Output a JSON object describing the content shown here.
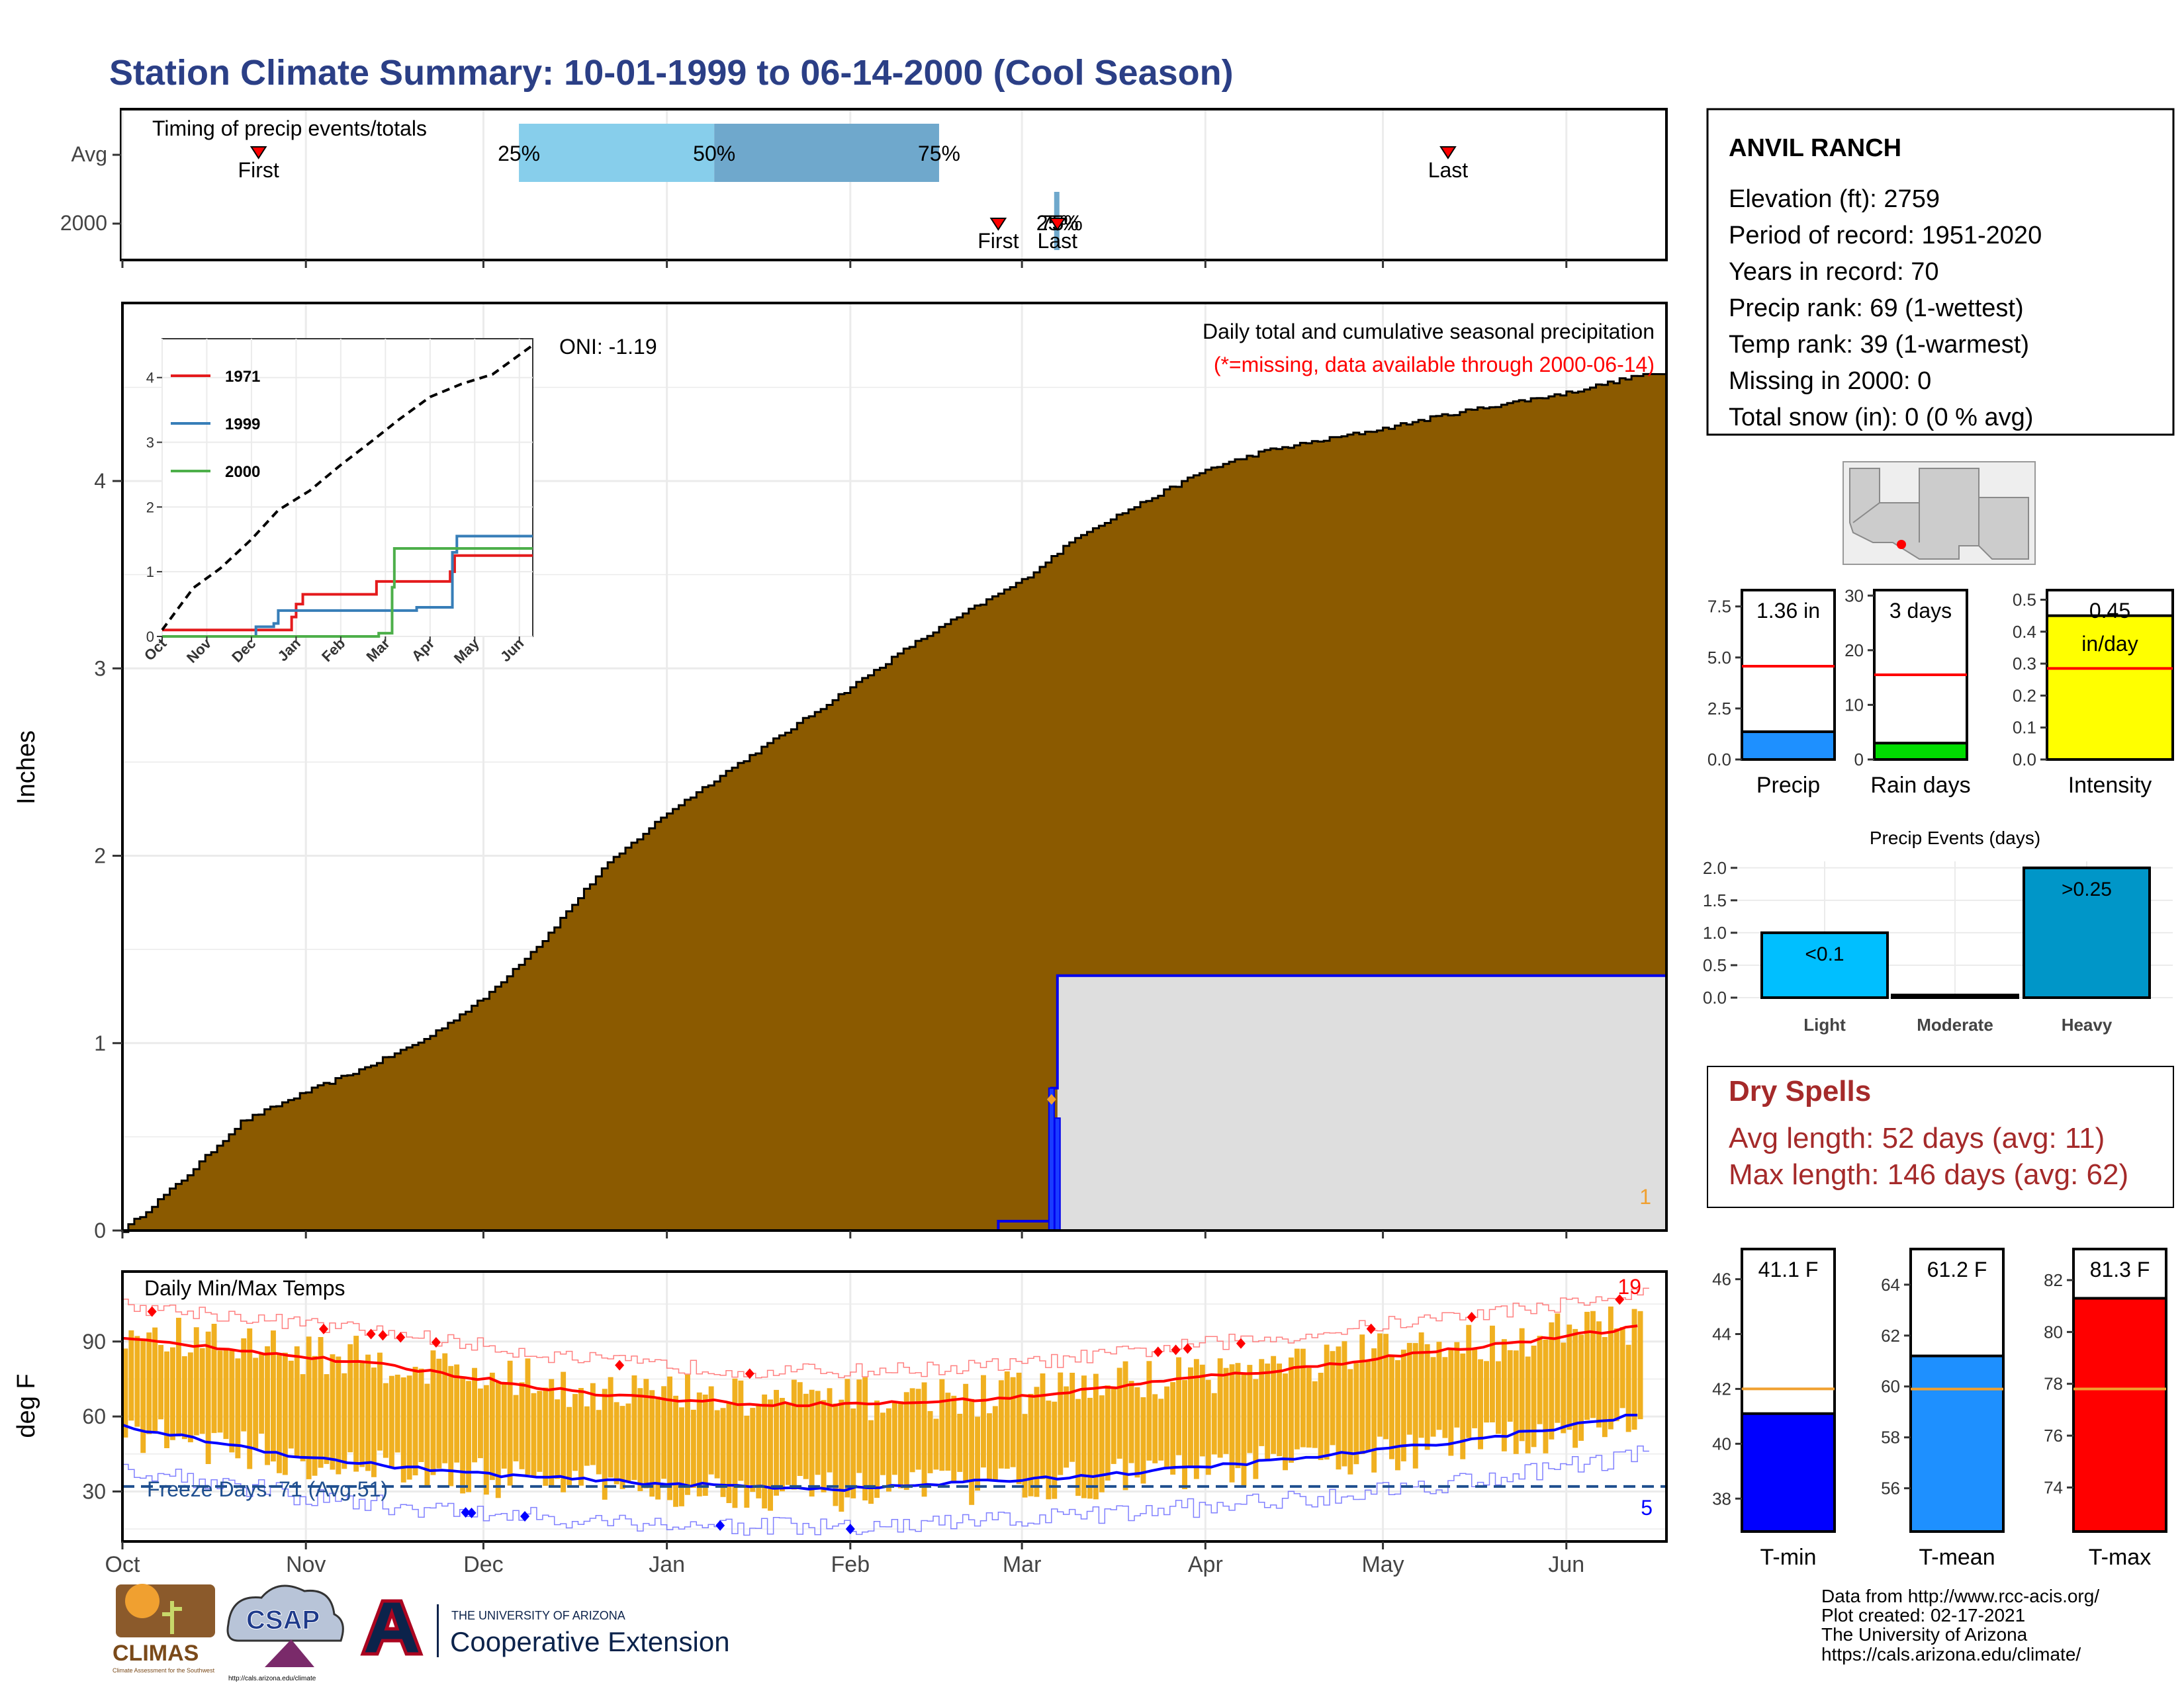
{
  "title": "Station Climate Summary: 10-01-1999 to 06-14-2000 (Cool Season)",
  "colors": {
    "title": "#2b3f86",
    "cumulative_fill": "#8b5a00",
    "daily_bar_edge": "#0000ee",
    "daily_bar_fill": "#1a3cff",
    "missing_fill": "#dedede",
    "precip_bar": "#1e90ff",
    "rain_days_bar": "#00dd00",
    "intensity_bar": "#ffff00",
    "avg_line": "#ff0000",
    "heavy_bar": "#0096c8",
    "light_bar": "#00bfff",
    "dry_spells_text": "#a52a2a",
    "tmin_bar": "#0000ff",
    "tmean_bar": "#1e90ff",
    "tmax_bar": "#ff0000",
    "temp_avg_line": "#f0a030",
    "temp_range_bars": "#f0b020",
    "quartile_light": "#87ceeb",
    "quartile_dark": "#6fa8cc"
  },
  "timing_panel": {
    "title": "Timing of precip events/totals",
    "rows": [
      "Avg",
      "2000"
    ],
    "avg_markers": [
      {
        "label": "First",
        "date": "1999-10-24"
      },
      {
        "label": "Last",
        "date": "2000-05-12"
      }
    ],
    "avg_quartiles": [
      {
        "label": "25%",
        "date": "1999-12-07"
      },
      {
        "label": "50%",
        "date": "2000-01-09"
      },
      {
        "label": "75%",
        "date": "2000-02-16"
      }
    ],
    "year_markers": [
      {
        "label": "First",
        "date": "2000-02-26"
      },
      {
        "label": "Last",
        "date": "2000-03-07"
      }
    ],
    "year_quartiles_text": "25%",
    "year_quartiles_overlap_text": "75%"
  },
  "chart_data": [
    {
      "type": "area",
      "title": "Daily total and cumulative seasonal precipitation",
      "subtitle": "(*=missing, data available through 2000-06-14)",
      "ylabel": "Inches",
      "ylim": [
        0,
        4.95
      ],
      "yticks": [
        0,
        1,
        2,
        3,
        4
      ],
      "x_ticks": [
        "Oct",
        "Nov",
        "Dec",
        "Jan",
        "Feb",
        "Mar",
        "Apr",
        "May",
        "Jun"
      ],
      "x_tick_dates": [
        "1999-10-01",
        "1999-11-01",
        "1999-12-01",
        "2000-01-01",
        "2000-02-01",
        "2000-03-01",
        "2000-04-01",
        "2000-05-01",
        "2000-06-01"
      ],
      "date_range": [
        "1999-10-01",
        "2000-06-14"
      ],
      "oni": "ONI: -1.19",
      "missing_count": "1",
      "series": [
        {
          "kind": "avg_cumulative_area",
          "x": [
            "1999-10-01",
            "1999-10-11",
            "1999-10-21",
            "1999-11-01",
            "1999-11-11",
            "1999-11-21",
            "1999-12-01",
            "1999-12-11",
            "1999-12-21",
            "2000-01-01",
            "2000-01-11",
            "2000-01-21",
            "2000-02-01",
            "2000-02-11",
            "2000-02-21",
            "2000-03-01",
            "2000-03-11",
            "2000-03-21",
            "2000-04-01",
            "2000-04-11",
            "2000-04-21",
            "2000-05-01",
            "2000-05-11",
            "2000-05-21",
            "2000-06-01",
            "2000-06-14"
          ],
          "y": [
            0.0,
            0.27,
            0.58,
            0.74,
            0.87,
            1.02,
            1.24,
            1.55,
            1.93,
            2.23,
            2.45,
            2.66,
            2.9,
            3.12,
            3.31,
            3.47,
            3.72,
            3.88,
            4.06,
            4.16,
            4.22,
            4.28,
            4.35,
            4.41,
            4.47,
            4.57
          ]
        },
        {
          "kind": "season_cumulative",
          "x": [
            "2000-02-26",
            "2000-03-06",
            "2000-03-07",
            "2000-06-14"
          ],
          "y": [
            0.05,
            0.76,
            1.36,
            1.36
          ]
        }
      ],
      "missing_region": [
        "2000-03-07",
        "2000-06-14"
      ],
      "missing_marker": {
        "date": "2000-03-06",
        "value": 0.7
      }
    },
    {
      "type": "line",
      "inset": true,
      "x_ticks": [
        "Oct",
        "Nov",
        "Dec",
        "Jan",
        "Feb",
        "Mar",
        "Apr",
        "May",
        "Jun"
      ],
      "ylim": [
        0,
        4.6
      ],
      "yticks": [
        0,
        1,
        2,
        3,
        4
      ],
      "series": [
        {
          "name": "1971",
          "color": "#e41a1c",
          "x": [
            0,
            1.95,
            2.9,
            3.0,
            3.15,
            4.5,
            4.8,
            5.6,
            6.45,
            6.55,
            8.3
          ],
          "y": [
            0.1,
            0.1,
            0.3,
            0.5,
            0.65,
            0.65,
            0.85,
            0.85,
            1.0,
            1.25,
            1.25
          ]
        },
        {
          "name": "1999",
          "color": "#377eb8",
          "x": [
            0,
            1.95,
            2.1,
            2.5,
            2.6,
            5.5,
            5.7,
            6.5,
            6.6,
            8.3
          ],
          "y": [
            0,
            0,
            0.15,
            0.2,
            0.4,
            0.4,
            0.45,
            1.3,
            1.55,
            1.55
          ]
        },
        {
          "name": "2000",
          "color": "#4daf4a",
          "x": [
            0,
            4.8,
            4.85,
            5.15,
            5.2,
            8.3
          ],
          "y": [
            0,
            0,
            0.05,
            0.76,
            1.36,
            1.36
          ]
        },
        {
          "name": "",
          "color": "#000000",
          "dashed": true,
          "x": [
            0,
            0.7,
            1.3,
            2.0,
            2.6,
            3.3,
            4.0,
            4.7,
            5.3,
            6.0,
            6.7,
            7.4,
            8.3
          ],
          "y": [
            0.1,
            0.75,
            1.05,
            1.5,
            1.95,
            2.25,
            2.65,
            3.02,
            3.35,
            3.7,
            3.9,
            4.05,
            4.5
          ]
        }
      ]
    },
    {
      "type": "bar",
      "title": "Precip",
      "label": "1.36 in",
      "value": 1.36,
      "avg": 4.57,
      "ylim": [
        0,
        8.3
      ],
      "yticks": [
        "0.0",
        "2.5",
        "5.0",
        "7.5"
      ]
    },
    {
      "type": "bar",
      "title": "Rain days",
      "label": "3 days",
      "value": 3,
      "avg": 15.5,
      "ylim": [
        0,
        31
      ],
      "yticks": [
        "0",
        "10",
        "20",
        "30"
      ]
    },
    {
      "type": "bar",
      "title": "Intensity",
      "label": "0.45",
      "sublabel": "in/day",
      "value": 0.45,
      "avg": 0.285,
      "ylim": [
        0,
        0.53
      ],
      "yticks": [
        "0.0",
        "0.1",
        "0.2",
        "0.3",
        "0.4",
        "0.5"
      ]
    },
    {
      "type": "bar",
      "title": "Precip Events (days)",
      "categories": [
        "Light",
        "Moderate",
        "Heavy"
      ],
      "values": [
        1,
        0,
        2
      ],
      "bar_labels": [
        "<0.1",
        "",
        ">0.25"
      ],
      "ylim": [
        0,
        2.1
      ],
      "yticks": [
        "0.0",
        "0.5",
        "1.0",
        "1.5",
        "2.0"
      ]
    },
    {
      "type": "bar",
      "title": "Daily Min/Max Temps",
      "ylabel": "deg F",
      "ylim": [
        10,
        118
      ],
      "yticks": [
        30,
        60,
        90
      ],
      "x_ticks": [
        "Oct",
        "Nov",
        "Dec",
        "Jan",
        "Feb",
        "Mar",
        "Apr",
        "May",
        "Jun"
      ],
      "freeze_line": 32,
      "freeze_text": "Freeze Days: 71 (Avg:51)",
      "record_high_count": "19",
      "record_low_count": "5",
      "series": [
        {
          "name": "",
          "kind": "avg_max",
          "color": "#ff0000",
          "x": [
            0,
            15,
            30,
            46,
            61,
            76,
            92,
            107,
            123,
            138,
            153,
            168,
            183,
            198,
            214,
            229,
            244,
            257
          ],
          "y": [
            91,
            88,
            84,
            80,
            75,
            70,
            67,
            65,
            65,
            66,
            68,
            72,
            76,
            79,
            84,
            88,
            92,
            96
          ]
        },
        {
          "name": "",
          "kind": "avg_min",
          "color": "#0000ff",
          "x": [
            0,
            15,
            30,
            46,
            61,
            76,
            92,
            107,
            123,
            138,
            153,
            168,
            183,
            198,
            214,
            229,
            244,
            257
          ],
          "y": [
            56,
            50,
            44,
            40,
            37,
            35,
            33,
            32,
            31,
            33,
            35,
            37,
            40,
            43,
            47,
            51,
            56,
            61
          ]
        }
      ]
    },
    {
      "type": "bar",
      "title": "T-min",
      "label": "41.1 F",
      "value": 41.1,
      "avg": 42.0,
      "ylim": [
        36.8,
        47.1
      ],
      "yticks": [
        "38",
        "40",
        "42",
        "44",
        "46"
      ]
    },
    {
      "type": "bar",
      "title": "T-mean",
      "label": "61.2 F",
      "value": 61.2,
      "avg": 59.9,
      "ylim": [
        54.3,
        65.4
      ],
      "yticks": [
        "56",
        "58",
        "60",
        "62",
        "64"
      ]
    },
    {
      "type": "bar",
      "title": "T-max",
      "label": "81.3 F",
      "value": 81.3,
      "avg": 77.8,
      "ylim": [
        72.3,
        83.2
      ],
      "yticks": [
        "74",
        "76",
        "78",
        "80",
        "82"
      ]
    }
  ],
  "station": {
    "name": "ANVIL RANCH",
    "lines": [
      "Elevation (ft): 2759",
      "Period of record: 1951-2020",
      "Years in record: 70",
      "Precip rank: 69 (1-wettest)",
      "Temp rank: 39 (1-warmest)",
      "Missing in 2000: 0",
      "Total snow (in): 0 (0 % avg)"
    ]
  },
  "dry_spells": {
    "title": "Dry Spells",
    "avg": "Avg length: 52 days (avg: 11)",
    "max": "Max length: 146 days (avg: 62)"
  },
  "footer": {
    "lines": [
      "Data from http://www.rcc-acis.org/",
      "Plot created: 02-17-2021",
      "The University of Arizona",
      "https://cals.arizona.edu/climate/"
    ],
    "logos": {
      "climas": "CLIMAS",
      "climas_sub": "Climate Assessment for the Southwest",
      "csap": "CSAP",
      "csap_url": "http://cals.arizona.edu/climate",
      "ua_small": "THE UNIVERSITY OF ARIZONA",
      "ua_big": "Cooperative Extension"
    }
  }
}
